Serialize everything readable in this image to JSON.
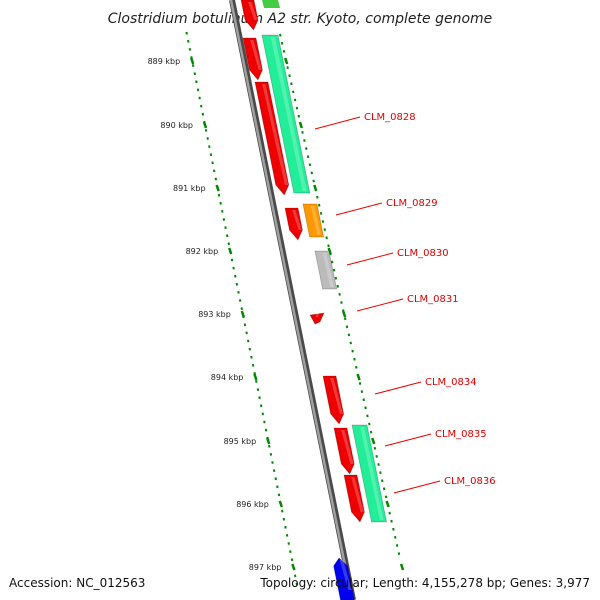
{
  "map": {
    "title": "Clostridium botulinum A2 str. Kyoto, complete genome",
    "accession_label": "Accession: NC_012563",
    "topology_label": "Topology: circular; Length: 4,155,278 bp; Genes: 3,977"
  },
  "ticks": [
    "889 kbp",
    "890 kbp",
    "891 kbp",
    "892 kbp",
    "893 kbp",
    "894 kbp",
    "895 kbp",
    "896 kbp",
    "897 kbp"
  ],
  "genes": [
    {
      "label": "",
      "color": "#ee0000",
      "strand": "reverse"
    },
    {
      "label": "",
      "color": "#ee0000",
      "strand": "reverse"
    },
    {
      "label": "CLM_0828",
      "color": "#22ee99",
      "strand": "forward"
    },
    {
      "label": "",
      "color": "#ee0000",
      "strand": "reverse"
    },
    {
      "label": "CLM_0829",
      "color": "#ff9900",
      "strand": "forward"
    },
    {
      "label": "",
      "color": "#ee0000",
      "strand": "reverse"
    },
    {
      "label": "CLM_0830",
      "color": "#bbbbbb",
      "strand": "forward"
    },
    {
      "label": "CLM_0831",
      "color": "#ee0000",
      "strand": "reverse"
    },
    {
      "label": "CLM_0834",
      "color": "#ee0000",
      "strand": "reverse"
    },
    {
      "label": "CLM_0835",
      "color": "#ee0000",
      "strand": "reverse"
    },
    {
      "label": "CLM_0836",
      "color": "#ee0000",
      "strand": "reverse"
    },
    {
      "label": "",
      "color": "#22ee99",
      "strand": "forward"
    },
    {
      "label": "",
      "color": "#0000ee",
      "strand": "forward"
    }
  ],
  "colors": {
    "backbone": "#888888",
    "tick": "#008800",
    "label_line": "#ee0000",
    "top_gene_green": "#44cc44"
  }
}
